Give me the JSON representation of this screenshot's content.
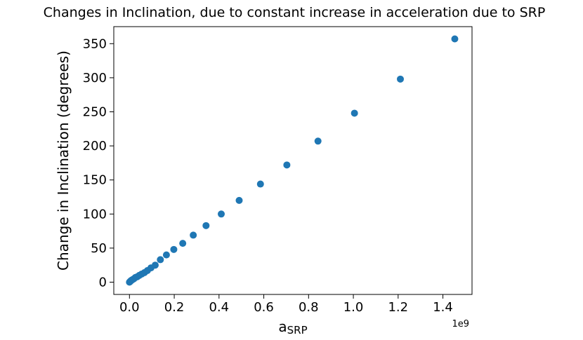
{
  "chart_data": {
    "type": "scatter",
    "title": "Changes in Inclination, due to constant increase in acceleration due to SRP",
    "xlabel_main": "a",
    "xlabel_sub": "SRP",
    "ylabel": "Change in Inclination (degrees)",
    "x_offset_label": "1e9",
    "xlim": [
      -0.07,
      1.53
    ],
    "ylim": [
      -18,
      375
    ],
    "xticks": [
      0.0,
      0.2,
      0.4,
      0.6,
      0.8,
      1.0,
      1.2,
      1.4
    ],
    "xtick_labels": [
      "0.0",
      "0.2",
      "0.4",
      "0.6",
      "0.8",
      "1.0",
      "1.2",
      "1.4"
    ],
    "yticks": [
      0,
      50,
      100,
      150,
      200,
      250,
      300,
      350
    ],
    "ytick_labels": [
      "0",
      "50",
      "100",
      "150",
      "200",
      "250",
      "300",
      "350"
    ],
    "grid": false,
    "marker_color": "#1f77b4",
    "series": [
      {
        "x": [
          0.0,
          0.003,
          0.006,
          0.01,
          0.015,
          0.02,
          0.027,
          0.035,
          0.044,
          0.055,
          0.067,
          0.08,
          0.096,
          0.115,
          0.138,
          0.165,
          0.198,
          0.238,
          0.285,
          0.342,
          0.41,
          0.49,
          0.585,
          0.703,
          0.842,
          1.005,
          1.21,
          1.453
        ],
        "y": [
          0,
          1,
          2,
          3,
          4,
          5,
          7,
          8,
          10,
          12,
          14,
          17,
          21,
          25,
          33,
          40,
          48,
          57,
          69,
          83,
          100,
          120,
          144,
          172,
          207,
          248,
          298,
          357
        ]
      }
    ]
  }
}
